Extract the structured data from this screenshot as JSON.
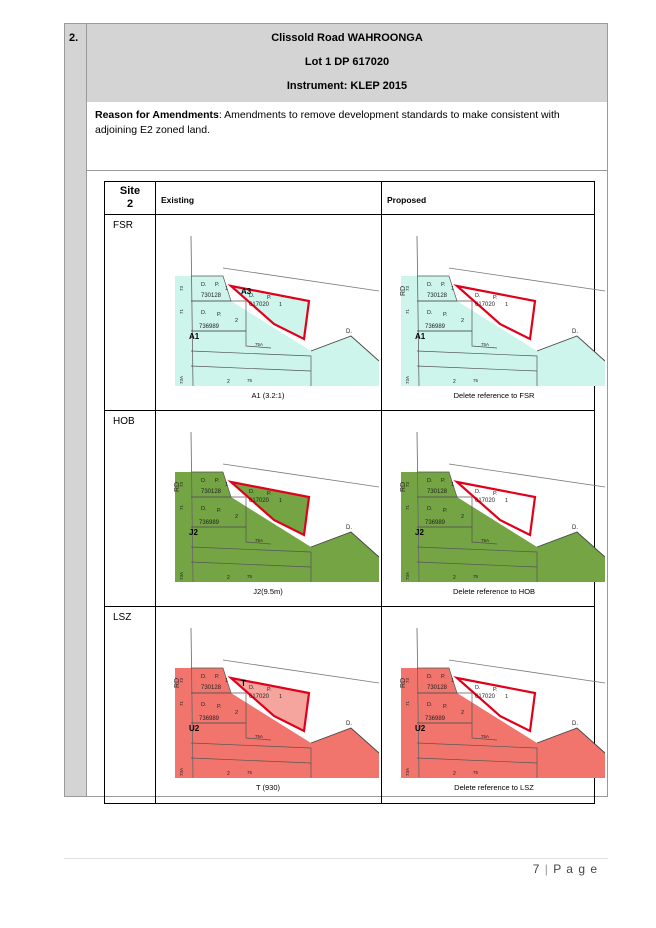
{
  "item": {
    "number": "2.",
    "title": "Clissold Road WAHROONGA",
    "lot": "Lot 1 DP 617020",
    "instrument": "Instrument: KLEP 2015"
  },
  "reason": {
    "label": "Reason for Amendments",
    "text": ": Amendments to remove development standards to make consistent with adjoining E2 zoned land."
  },
  "table": {
    "site_label_line1": "Site",
    "site_label_line2": "2",
    "existing_header": "Existing",
    "proposed_header": "Proposed",
    "rows": [
      {
        "label": "FSR",
        "existing_caption": "A1 (3.2:1)",
        "proposed_caption": "Delete reference to FSR",
        "fill": "#cdf5ec",
        "site_fill": "#cdf5ec",
        "existing_code": "A1",
        "site_code": "A3"
      },
      {
        "label": "HOB",
        "existing_caption": "J2(9.5m)",
        "proposed_caption": "Delete reference to HOB",
        "fill": "#74a444",
        "site_fill": "#74a444",
        "existing_code": "J2",
        "site_code": ""
      },
      {
        "label": "LSZ",
        "existing_caption": "T (930)",
        "proposed_caption": "Delete reference to LSZ",
        "fill": "#f1756c",
        "site_fill": "#f5a49e",
        "existing_code": "U2",
        "site_code": "T"
      }
    ],
    "map_labels": {
      "dp1": "D.",
      "p": "P.",
      "one": "1",
      "dp_730128": "730128",
      "dp_736989": "736989",
      "dp_617020": "617020",
      "two": "2",
      "road": "RD",
      "d_right": "D.",
      "n75a": "75A",
      "n73": "73",
      "n75": "75",
      "n71": "71",
      "n73a": "73A"
    }
  },
  "footer": {
    "page_num": "7",
    "separator": "|",
    "page_word": "P a g e"
  }
}
